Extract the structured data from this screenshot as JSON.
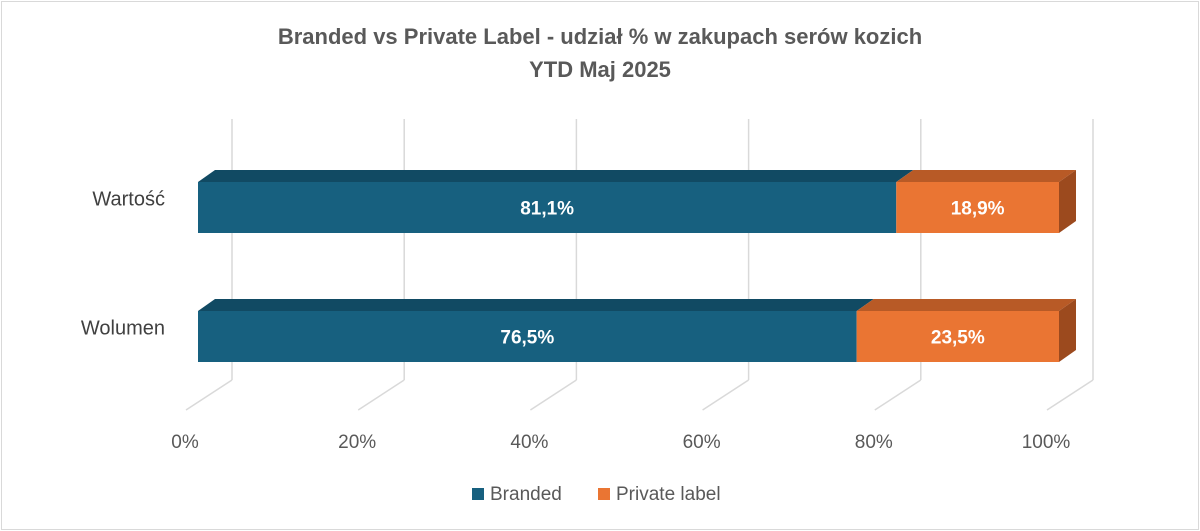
{
  "chart_data": {
    "type": "bar",
    "orientation": "horizontal",
    "stacked": "percent",
    "three_d": true,
    "title": "Branded vs Private Label - udział % w zakupach serów kozich",
    "subtitle": "YTD Maj 2025",
    "categories": [
      "Wartość",
      "Wolumen"
    ],
    "series": [
      {
        "name": "Branded",
        "values": [
          81.1,
          76.5
        ],
        "labels": [
          "81,1%",
          "76,5%"
        ],
        "color": "#17607f",
        "top_color": "#114a63",
        "side_color": "#0f3f55"
      },
      {
        "name": "Private label",
        "values": [
          18.9,
          23.5
        ],
        "labels": [
          "18,9%",
          "23,5%"
        ],
        "color": "#ea7533",
        "top_color": "#b85a26",
        "side_color": "#9c4a1e"
      }
    ],
    "xlim": [
      0,
      100
    ],
    "xticks": [
      "0%",
      "20%",
      "40%",
      "60%",
      "80%",
      "100%"
    ],
    "grid": true,
    "legend_position": "bottom"
  }
}
